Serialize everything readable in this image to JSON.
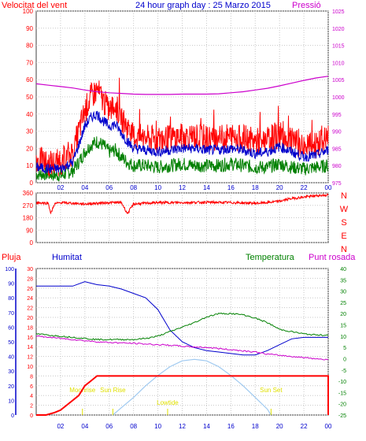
{
  "colors": {
    "red": "#ff0000",
    "blue": "#0000cc",
    "green": "#008000",
    "magenta": "#cc00cc",
    "grid": "#c8c8c8",
    "frame": "#404040",
    "sun": "#9fc9f0",
    "yellow": "#e0e000"
  },
  "chart_data": [
    {
      "type": "line",
      "title": "24 hour graph day : 25 Marzo 2015",
      "left_label": "Velocitat del vent",
      "right_label": "Pressió",
      "x_ticks": [
        "02",
        "04",
        "06",
        "08",
        "10",
        "12",
        "14",
        "16",
        "18",
        "20",
        "22",
        "00"
      ],
      "y_left_ticks": [
        "0",
        "10",
        "20",
        "30",
        "40",
        "50",
        "60",
        "70",
        "80",
        "90",
        "100"
      ],
      "ylim_left": [
        0,
        100
      ],
      "y_right_ticks": [
        "975",
        "980",
        "985",
        "990",
        "995",
        "1000",
        "1005",
        "1010",
        "1015",
        "1020",
        "1025"
      ],
      "ylim_right": [
        975,
        1025
      ],
      "grid": true,
      "series": [
        {
          "key": "gust",
          "color": "#ff0000",
          "axis": "left",
          "x": [
            0,
            1,
            2,
            3,
            3.5,
            4,
            4.5,
            5,
            5.5,
            6,
            6.5,
            7,
            7.5,
            8,
            9,
            10,
            11,
            12,
            13,
            14,
            15,
            16,
            17,
            18,
            19,
            20,
            21,
            22,
            23,
            24
          ],
          "y": [
            14,
            11,
            12,
            18,
            30,
            42,
            50,
            54,
            48,
            42,
            45,
            38,
            32,
            27,
            26,
            25,
            26,
            27,
            27,
            26,
            26,
            27,
            26,
            24,
            25,
            28,
            24,
            21,
            22,
            26
          ]
        },
        {
          "key": "avg",
          "color": "#0000cc",
          "axis": "left",
          "x": [
            0,
            1,
            2,
            3,
            3.5,
            4,
            4.5,
            5,
            5.5,
            6,
            6.5,
            7,
            7.5,
            8,
            9,
            10,
            11,
            12,
            13,
            14,
            15,
            16,
            17,
            18,
            19,
            20,
            21,
            22,
            23,
            24
          ],
          "y": [
            9,
            8,
            8,
            12,
            22,
            33,
            38,
            40,
            36,
            33,
            34,
            29,
            24,
            20,
            19,
            18,
            19,
            20,
            20,
            19,
            19,
            20,
            19,
            17,
            18,
            21,
            18,
            15,
            16,
            19
          ]
        },
        {
          "key": "low",
          "color": "#008000",
          "axis": "left",
          "x": [
            0,
            1,
            2,
            3,
            3.5,
            4,
            4.5,
            5,
            5.5,
            6,
            6.5,
            7,
            7.5,
            8,
            9,
            10,
            11,
            12,
            13,
            14,
            15,
            16,
            17,
            18,
            19,
            20,
            21,
            22,
            23,
            24
          ],
          "y": [
            5,
            5,
            4,
            7,
            12,
            18,
            22,
            24,
            22,
            18,
            19,
            15,
            12,
            10,
            10,
            9,
            10,
            11,
            10,
            10,
            10,
            11,
            10,
            9,
            9,
            11,
            9,
            8,
            9,
            10
          ]
        },
        {
          "key": "pressure",
          "color": "#cc00cc",
          "axis": "right",
          "x": [
            0,
            1,
            2,
            3,
            4,
            5,
            6,
            7,
            8,
            9,
            10,
            11,
            12,
            13,
            14,
            15,
            16,
            17,
            18,
            19,
            20,
            21,
            22,
            23,
            24
          ],
          "y": [
            1003.8,
            1003.4,
            1003,
            1002.6,
            1002,
            1001.5,
            1001.2,
            1001,
            1000.8,
            1000.7,
            1000.7,
            1000.7,
            1000.8,
            1000.8,
            1000.8,
            1000.9,
            1001.2,
            1001.5,
            1002,
            1002.5,
            1003.2,
            1004,
            1004.8,
            1005.5,
            1006
          ]
        }
      ]
    },
    {
      "type": "line",
      "left_ticks": [
        "0",
        "90",
        "180",
        "270",
        "360"
      ],
      "ylim": [
        0,
        360
      ],
      "compass": [
        "N",
        "W",
        "S",
        "E",
        "N"
      ],
      "x_ticks": [
        "02",
        "04",
        "06",
        "08",
        "10",
        "12",
        "14",
        "16",
        "18",
        "20",
        "22",
        "00"
      ],
      "grid": true,
      "series": [
        {
          "key": "direction",
          "color": "#ff0000",
          "x": [
            0,
            1,
            1.2,
            1.5,
            2,
            3,
            4,
            5,
            6,
            7,
            7.5,
            8,
            9,
            10,
            12,
            14,
            16,
            18,
            19,
            20,
            21,
            22,
            23,
            24
          ],
          "y": [
            290,
            285,
            210,
            280,
            290,
            285,
            280,
            285,
            290,
            290,
            210,
            280,
            285,
            290,
            290,
            292,
            290,
            285,
            290,
            300,
            320,
            330,
            340,
            345
          ]
        }
      ]
    },
    {
      "type": "line",
      "labels": {
        "rain": "Pluja",
        "humidity": "Humitat",
        "temperature": "Temperatura",
        "dewpoint": "Punt rosada"
      },
      "x_ticks": [
        "02",
        "04",
        "06",
        "08",
        "10",
        "12",
        "14",
        "16",
        "18",
        "20",
        "22",
        "00"
      ],
      "humidity_ticks": [
        "0",
        "10",
        "20",
        "30",
        "40",
        "50",
        "60",
        "70",
        "80",
        "90",
        "100"
      ],
      "ylim_humidity": [
        0,
        100
      ],
      "rain_ticks": [
        "0",
        "2",
        "4",
        "6",
        "8",
        "10",
        "12",
        "14",
        "16",
        "18",
        "20",
        "22",
        "24",
        "26",
        "28",
        "30"
      ],
      "ylim_rain": [
        0,
        30
      ],
      "temp_ticks": [
        "40",
        "35",
        "30",
        "25",
        "20",
        "15",
        "10",
        "5",
        "0",
        "-5",
        "-10",
        "-15",
        "-20",
        "-25"
      ],
      "ylim_temp": [
        -25,
        40
      ],
      "grid": true,
      "sun_events": [
        {
          "key": "moonrise",
          "label": "Moonrise",
          "hour": 3.8
        },
        {
          "key": "sunrise",
          "label": "Sun Rise",
          "hour": 6.3
        },
        {
          "key": "lowtide",
          "label": "Lowtide",
          "hour": 10.8
        },
        {
          "key": "sunset",
          "label": "Sun Set",
          "hour": 19.3
        }
      ],
      "series": [
        {
          "key": "humidity",
          "color": "#0000cc",
          "axis": "humidity",
          "x": [
            0,
            1,
            2,
            3,
            4,
            4.5,
            5,
            6,
            7,
            8,
            9,
            10,
            10.5,
            11,
            12,
            13,
            14,
            15,
            16,
            17,
            18,
            19,
            20,
            21,
            22,
            23,
            24
          ],
          "y": [
            88,
            88,
            88,
            88,
            91,
            90,
            89,
            88,
            86,
            83,
            80,
            72,
            65,
            58,
            50,
            46,
            44,
            43,
            42,
            41,
            41,
            44,
            48,
            52,
            53,
            53,
            53
          ]
        },
        {
          "key": "temperature",
          "color": "#008000",
          "axis": "temp",
          "x": [
            0,
            1,
            2,
            3,
            4,
            5,
            6,
            7,
            8,
            9,
            10,
            11,
            12,
            13,
            14,
            15,
            16,
            17,
            18,
            19,
            20,
            21,
            22,
            23,
            24
          ],
          "y": [
            11,
            10.5,
            10,
            9.5,
            9,
            8.5,
            8.5,
            8.5,
            8.5,
            9,
            10,
            12,
            14,
            16,
            18.5,
            20,
            20,
            19.5,
            18,
            16,
            13,
            12,
            11,
            10.5,
            10.5
          ]
        },
        {
          "key": "dewpoint",
          "color": "#cc00cc",
          "axis": "temp",
          "x": [
            0,
            1,
            2,
            3,
            4,
            5,
            6,
            7,
            8,
            9,
            10,
            11,
            12,
            13,
            14,
            15,
            16,
            17,
            18,
            19,
            20,
            21,
            22,
            23,
            24
          ],
          "y": [
            10,
            9.5,
            9,
            8.5,
            8,
            7.5,
            7.2,
            7,
            6.8,
            6.5,
            6.2,
            6,
            5.5,
            5.2,
            5,
            4.5,
            4,
            3.5,
            3,
            2,
            1.5,
            1,
            0.5,
            0,
            -0.5
          ]
        },
        {
          "key": "rain",
          "color": "#ff0000",
          "axis": "rain",
          "x": [
            0,
            0.8,
            1.5,
            2,
            2.5,
            3,
            3.5,
            4,
            4.5,
            5,
            5.5,
            24
          ],
          "y": [
            0,
            0,
            0.5,
            1,
            2,
            3,
            4,
            6,
            7,
            8,
            8,
            8
          ]
        },
        {
          "key": "sun",
          "color": "#9fc9f0",
          "axis": "humidity",
          "x": [
            6.3,
            7,
            8,
            9,
            10,
            11,
            12,
            13,
            14,
            15,
            16,
            17,
            18,
            19,
            19.3
          ],
          "y": [
            0,
            5,
            12,
            20,
            27,
            33,
            37,
            38,
            37,
            33,
            27,
            20,
            12,
            4,
            0
          ]
        }
      ]
    }
  ]
}
